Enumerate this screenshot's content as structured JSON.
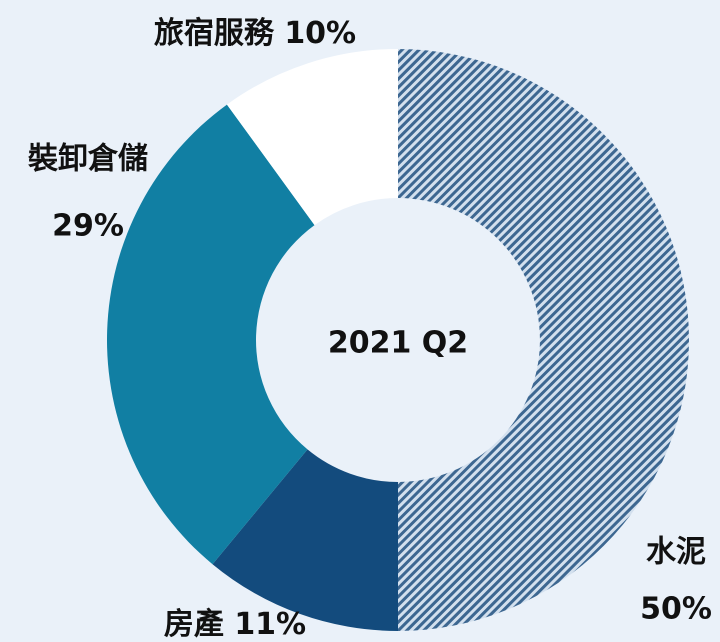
{
  "chart_data": {
    "type": "donut",
    "center_text": "2021 Q2",
    "categories": [
      "水泥",
      "房產",
      "裝卸倉儲",
      "旅宿服務"
    ],
    "values": [
      50,
      11,
      29,
      10
    ],
    "value_labels": [
      "50%",
      "11%",
      "29%",
      "10%"
    ],
    "colors": [
      "#a9c0d9",
      "#134b7d",
      "#117fa3",
      "#ffffff"
    ],
    "hatch": [
      true,
      false,
      false,
      false
    ]
  }
}
